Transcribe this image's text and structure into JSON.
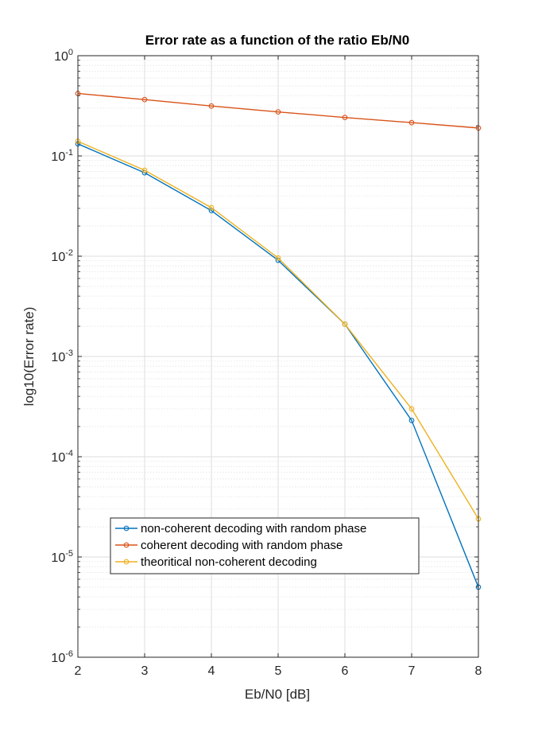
{
  "chart_data": {
    "type": "line",
    "title": "Error rate as a function of the ratio Eb/N0",
    "xlabel": "Eb/N0 [dB]",
    "ylabel": "log10(Error rate)",
    "xlim": [
      2,
      8
    ],
    "ylim": [
      1e-06,
      1
    ],
    "yscale": "log",
    "grid": true,
    "minor_grid": true,
    "legend_position": "lower-left",
    "x_ticks": [
      2,
      3,
      4,
      5,
      6,
      7,
      8
    ],
    "x_tick_labels": [
      "2",
      "3",
      "4",
      "5",
      "6",
      "7",
      "8"
    ],
    "y_ticks": [
      1e-06,
      1e-05,
      0.0001,
      0.001,
      0.01,
      0.1,
      1
    ],
    "y_tick_labels": [
      {
        "base": "10",
        "exp": "-6"
      },
      {
        "base": "10",
        "exp": "-5"
      },
      {
        "base": "10",
        "exp": "-4"
      },
      {
        "base": "10",
        "exp": "-3"
      },
      {
        "base": "10",
        "exp": "-2"
      },
      {
        "base": "10",
        "exp": "-1"
      },
      {
        "base": "10",
        "exp": "0"
      }
    ],
    "x": [
      2,
      3,
      4,
      5,
      6,
      7,
      8
    ],
    "series": [
      {
        "name": "non-coherent decoding with random phase",
        "color": "#0072BD",
        "marker": "circle",
        "values": [
          0.132,
          0.068,
          0.0285,
          0.0091,
          0.0021,
          0.00023,
          5e-06
        ]
      },
      {
        "name": "coherent decoding with random phase",
        "color": "#D95319",
        "marker": "circle",
        "values": [
          0.42,
          0.365,
          0.315,
          0.275,
          0.242,
          0.215,
          0.19
        ]
      },
      {
        "name": "theoritical non-coherent decoding",
        "color": "#EDB120",
        "marker": "circle",
        "values": [
          0.14,
          0.072,
          0.0305,
          0.0096,
          0.0021,
          0.0003,
          2.4e-05
        ]
      }
    ]
  }
}
